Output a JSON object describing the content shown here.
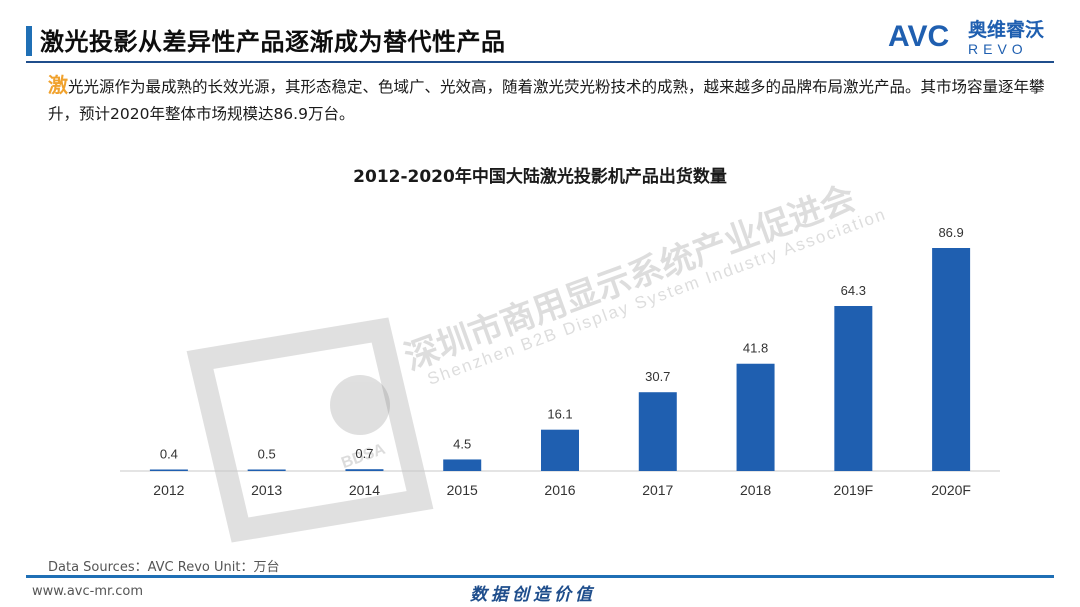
{
  "header": {
    "title": "激光投影从差异性产品逐渐成为替代性产品",
    "logo_text_en": "AVC",
    "logo_text_cn": "奥维睿沃",
    "logo_text_sub": "REVO"
  },
  "intro": {
    "first_char": "激",
    "text": "光光源作为最成熟的长效光源，其形态稳定、色域广、光效高，随着激光荧光粉技术的成熟，越来越多的品牌布局激光产品。其市场容量逐年攀升，预计2020年整体市场规模达86.9万台。"
  },
  "watermark": {
    "cn": "深圳市商用显示系统产业促进会",
    "en": "Shenzhen B2B Display System Industry Association",
    "badge": "BDSA"
  },
  "chart_data": {
    "type": "bar",
    "title": "2012-2020年中国大陆激光投影机产品出货数量",
    "categories": [
      "2012",
      "2013",
      "2014",
      "2015",
      "2016",
      "2017",
      "2018",
      "2019F",
      "2020F"
    ],
    "values": [
      0.4,
      0.5,
      0.7,
      4.5,
      16.1,
      30.7,
      41.8,
      64.3,
      86.9
    ],
    "value_labels": [
      "0.4",
      "0.5",
      "0.7",
      "4.5",
      "16.1",
      "30.7",
      "41.8",
      "64.3",
      "86.9"
    ],
    "ylim": [
      0,
      86.9
    ],
    "bar_color": "#1f5fb0",
    "grid": false,
    "legend": "none"
  },
  "footer": {
    "source": "Data Sources：AVC Revo    Unit：万台",
    "url": "www.avc-mr.com",
    "slogan": "数据创造价值"
  },
  "colors": {
    "accent": "#1f6fb5",
    "highlight": "#f0a22e",
    "title_bar": "#1f4e8c"
  }
}
